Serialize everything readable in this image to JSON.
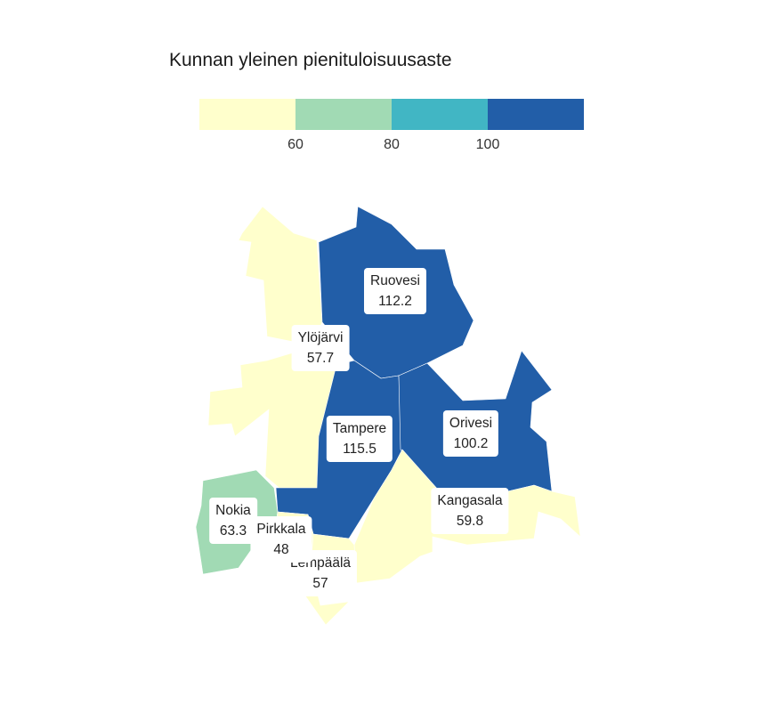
{
  "title": "Kunnan yleinen pienituloisuusaste",
  "legend": {
    "ticks": [
      "60",
      "80",
      "100"
    ],
    "colors": [
      "#ffffcc",
      "#a1dab4",
      "#41b6c4",
      "#225ea8"
    ]
  },
  "municipalities": [
    {
      "id": "ruovesi",
      "name": "Ruovesi",
      "value": "112.2",
      "color": "#225ea8"
    },
    {
      "id": "ylojarvi",
      "name": "Ylöjärvi",
      "value": "57.7",
      "color": "#ffffcc"
    },
    {
      "id": "tampere",
      "name": "Tampere",
      "value": "115.5",
      "color": "#225ea8"
    },
    {
      "id": "orivesi",
      "name": "Orivesi",
      "value": "100.2",
      "color": "#225ea8"
    },
    {
      "id": "kangasala",
      "name": "Kangasala",
      "value": "59.8",
      "color": "#ffffcc"
    },
    {
      "id": "nokia",
      "name": "Nokia",
      "value": "63.3",
      "color": "#a1dab4"
    },
    {
      "id": "pirkkala",
      "name": "Pirkkala",
      "value": "48",
      "color": "#ffffcc"
    },
    {
      "id": "lempaala",
      "name": "Lempäälä",
      "value": "57",
      "color": "#ffffcc"
    }
  ]
}
